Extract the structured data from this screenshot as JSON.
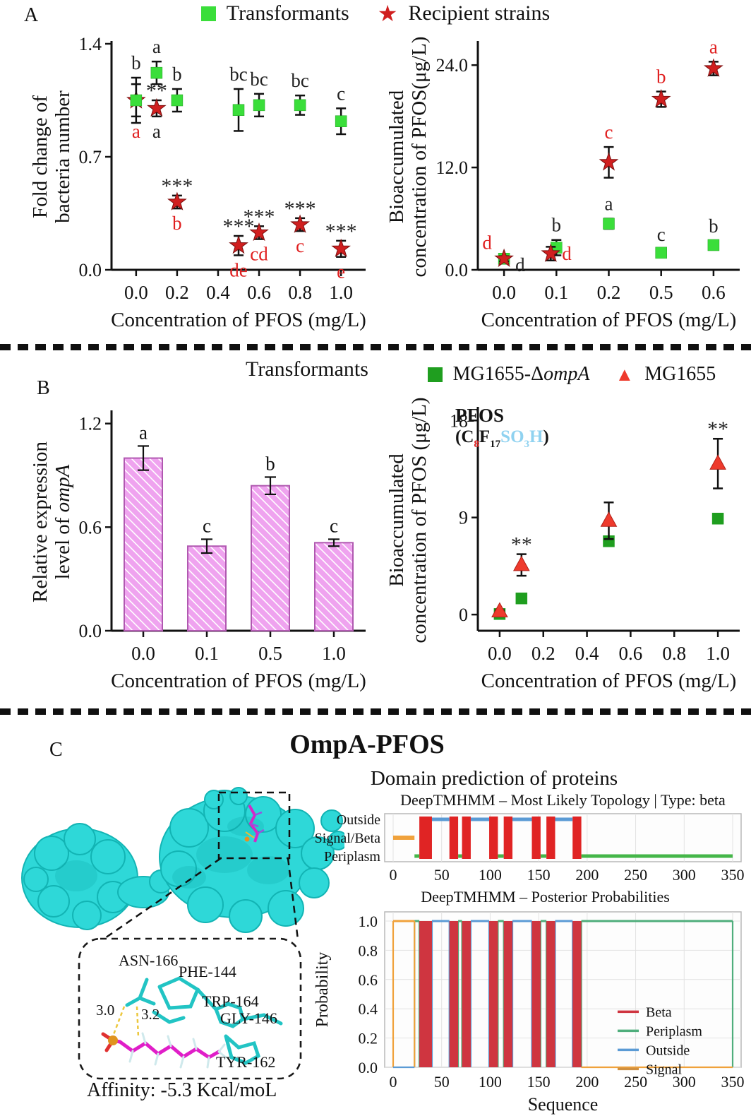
{
  "panels": {
    "a": {
      "label": "A",
      "legend": [
        {
          "label": "Transformants",
          "marker": "square",
          "color": "#3ade3a"
        },
        {
          "label": "Recipient strains",
          "marker": "star",
          "color": "#d01f1f"
        }
      ]
    },
    "b": {
      "label": "B",
      "title": "Transformants",
      "legend": [
        {
          "label_prefix": "MG1655-Δ",
          "label_italic": "ompA",
          "marker": "square",
          "color": "#1f9e1f"
        },
        {
          "label": "MG1655",
          "marker": "triangle",
          "color": "#ee3a2c"
        }
      ],
      "formula": {
        "title": "PFOS",
        "segments": [
          {
            "t": "(C",
            "c": "#141414"
          },
          {
            "t": "8",
            "c": "#e02020",
            "sub": true
          },
          {
            "t": "F",
            "c": "#141414"
          },
          {
            "t": "17",
            "c": "#141414",
            "sub": true
          },
          {
            "t": "SO",
            "c": "#8fd2f0"
          },
          {
            "t": "3",
            "c": "#8fd2f0",
            "sub": true
          },
          {
            "t": "H",
            "c": "#8fd2f0"
          },
          {
            "t": ")",
            "c": "#141414"
          }
        ]
      }
    },
    "c": {
      "label": "C",
      "title": "OmpA-PFOS",
      "domain_heading": "Domain prediction of proteins",
      "affinity": "Affinity: -5.3 Kcal/moL",
      "inset": {
        "residues": [
          "ASN-166",
          "PHE-144",
          "TRP-164",
          "GLY-146",
          "TYR-162"
        ],
        "distances": [
          "3.0",
          "3.2"
        ]
      }
    }
  },
  "chart_data": [
    {
      "id": "a_left",
      "type": "scatter",
      "xlabel": "Concentration of PFOS (mg/L)",
      "ylabel_lines": [
        [
          {
            "t": "Fold change of"
          }
        ],
        [
          {
            "t": "bacteria number"
          }
        ]
      ],
      "xlim": [
        -0.12,
        1.12
      ],
      "ylim": [
        0,
        1.4
      ],
      "xticks": [
        [
          0.0,
          "0.0"
        ],
        [
          0.2,
          "0.2"
        ],
        [
          0.4,
          "0.4"
        ],
        [
          0.6,
          "0.6"
        ],
        [
          0.8,
          "0.8"
        ],
        [
          1.0,
          "1.0"
        ]
      ],
      "yticks": [
        [
          0.0,
          "0.0"
        ],
        [
          0.7,
          "0.7"
        ],
        [
          1.4,
          "1.4"
        ]
      ],
      "series": [
        {
          "name": "Recipient strains",
          "marker": "star",
          "color": "#d01f1f",
          "points": [
            {
              "x": 0.0,
              "y": 1.05,
              "e": 0.1,
              "ann": [
                {
                  "t": "a",
                  "c": "#e02020",
                  "pos": "below"
                }
              ]
            },
            {
              "x": 0.1,
              "y": 1.0,
              "e": 0.05,
              "ann": [
                {
                  "t": "**",
                  "c": "#222",
                  "pos": "above"
                },
                {
                  "t": "a",
                  "c": "#222",
                  "pos": "below"
                }
              ]
            },
            {
              "x": 0.2,
              "y": 0.42,
              "e": 0.04,
              "ann": [
                {
                  "t": "***",
                  "c": "#222",
                  "pos": "above"
                },
                {
                  "t": "b",
                  "c": "#e02020",
                  "pos": "below"
                }
              ]
            },
            {
              "x": 0.5,
              "y": 0.15,
              "e": 0.06,
              "ann": [
                {
                  "t": "***",
                  "c": "#222",
                  "pos": "above"
                },
                {
                  "t": "de",
                  "c": "#e02020",
                  "pos": "below"
                }
              ]
            },
            {
              "x": 0.6,
              "y": 0.23,
              "e": 0.04,
              "ann": [
                {
                  "t": "***",
                  "c": "#222",
                  "pos": "above"
                },
                {
                  "t": "cd",
                  "c": "#e02020",
                  "pos": "below"
                }
              ]
            },
            {
              "x": 0.8,
              "y": 0.28,
              "e": 0.04,
              "ann": [
                {
                  "t": "***",
                  "c": "#222",
                  "pos": "above"
                },
                {
                  "t": "c",
                  "c": "#e02020",
                  "pos": "below"
                }
              ]
            },
            {
              "x": 1.0,
              "y": 0.13,
              "e": 0.05,
              "ann": [
                {
                  "t": "***",
                  "c": "#222",
                  "pos": "above"
                },
                {
                  "t": "e",
                  "c": "#e02020",
                  "pos": "below"
                }
              ]
            }
          ]
        },
        {
          "name": "Transformants",
          "marker": "square",
          "color": "#3ade3a",
          "points": [
            {
              "x": 0.0,
              "y": 1.05,
              "e": 0.14,
              "ann": [
                {
                  "t": "b",
                  "c": "#222",
                  "pos": "above"
                }
              ]
            },
            {
              "x": 0.1,
              "y": 1.22,
              "e": 0.07,
              "ann": [
                {
                  "t": "a",
                  "c": "#222",
                  "pos": "above"
                }
              ]
            },
            {
              "x": 0.2,
              "y": 1.05,
              "e": 0.07,
              "ann": [
                {
                  "t": "b",
                  "c": "#222",
                  "pos": "above"
                }
              ]
            },
            {
              "x": 0.5,
              "y": 0.99,
              "e": 0.13,
              "ann": [
                {
                  "t": "bc",
                  "c": "#222",
                  "pos": "above"
                }
              ]
            },
            {
              "x": 0.6,
              "y": 1.02,
              "e": 0.07,
              "ann": [
                {
                  "t": "bc",
                  "c": "#222",
                  "pos": "above"
                }
              ]
            },
            {
              "x": 0.8,
              "y": 1.02,
              "e": 0.06,
              "ann": [
                {
                  "t": "bc",
                  "c": "#222",
                  "pos": "above"
                }
              ]
            },
            {
              "x": 1.0,
              "y": 0.92,
              "e": 0.08,
              "ann": [
                {
                  "t": "c",
                  "c": "#222",
                  "pos": "above"
                }
              ]
            }
          ]
        }
      ]
    },
    {
      "id": "a_right",
      "type": "scatter",
      "xlabel": "Concentration of PFOS (mg/L)",
      "ylabel_lines": [
        [
          {
            "t": "Bioaccumulated"
          }
        ],
        [
          {
            "t": "concentration of PFOS(μg/L)"
          }
        ]
      ],
      "categories": [
        "0.0",
        "0.1",
        "0.2",
        "0.5",
        "0.6"
      ],
      "ylim": [
        0,
        26.5
      ],
      "yticks": [
        [
          0.0,
          "0.0"
        ],
        [
          12.0,
          "12.0"
        ],
        [
          24.0,
          "24.0"
        ]
      ],
      "series": [
        {
          "name": "Transformants",
          "marker": "square",
          "color": "#3ade3a",
          "points": [
            {
              "x": 0,
              "y": 1.3,
              "e": 0.3,
              "ann": [
                {
                  "t": "d",
                  "c": "#222",
                  "pos": "right-below"
                }
              ]
            },
            {
              "x": 1,
              "y": 2.6,
              "e": 0.9,
              "ann": [
                {
                  "t": "b",
                  "c": "#222",
                  "pos": "above"
                }
              ]
            },
            {
              "x": 2,
              "y": 5.4,
              "e": 0.6,
              "ann": [
                {
                  "t": "a",
                  "c": "#222",
                  "pos": "above"
                }
              ]
            },
            {
              "x": 3,
              "y": 2.0,
              "e": 0.4,
              "ann": [
                {
                  "t": "c",
                  "c": "#222",
                  "pos": "above"
                }
              ]
            },
            {
              "x": 4,
              "y": 2.9,
              "e": 0.5,
              "ann": [
                {
                  "t": "b",
                  "c": "#222",
                  "pos": "above"
                }
              ]
            }
          ]
        },
        {
          "name": "Recipient strains",
          "marker": "star",
          "color": "#d01f1f",
          "points": [
            {
              "x": 0,
              "y": 1.3,
              "e": 0.3,
              "ann": [
                {
                  "t": "d",
                  "c": "#e02020",
                  "pos": "above-left"
                }
              ]
            },
            {
              "x": 1,
              "y": 1.9,
              "e": 0.8,
              "dx": -8,
              "ann": [
                {
                  "t": "d",
                  "c": "#e02020",
                  "pos": "right"
                }
              ]
            },
            {
              "x": 2,
              "y": 12.6,
              "e": 1.8,
              "ann": [
                {
                  "t": "c",
                  "c": "#e02020",
                  "pos": "above"
                }
              ]
            },
            {
              "x": 3,
              "y": 20.0,
              "e": 0.9,
              "ann": [
                {
                  "t": "b",
                  "c": "#e02020",
                  "pos": "above"
                }
              ]
            },
            {
              "x": 4,
              "y": 23.6,
              "e": 0.8,
              "ann": [
                {
                  "t": "a",
                  "c": "#e02020",
                  "pos": "above"
                }
              ]
            }
          ]
        }
      ]
    },
    {
      "id": "b_left",
      "type": "bar",
      "xlabel": "Concentration of PFOS (mg/L)",
      "ylabel_lines": [
        [
          {
            "t": "Relative expression"
          }
        ],
        [
          {
            "t": "level of "
          },
          {
            "t": "ompA",
            "i": true
          }
        ]
      ],
      "categories": [
        "0.0",
        "0.1",
        "0.5",
        "1.0"
      ],
      "ylim": [
        0,
        1.26
      ],
      "yticks": [
        [
          0.0,
          "0.0"
        ],
        [
          0.6,
          "0.6"
        ],
        [
          1.2,
          "1.2"
        ]
      ],
      "bar_color": "#efa3ef",
      "bar_edge": "#b059b0",
      "values": [
        1.0,
        0.49,
        0.84,
        0.51
      ],
      "errors": [
        0.07,
        0.04,
        0.05,
        0.02
      ],
      "letters": [
        "a",
        "c",
        "b",
        "c"
      ]
    },
    {
      "id": "b_right",
      "type": "scatter",
      "xlabel": "Concentration of PFOS (mg/L)",
      "ylabel_lines": [
        [
          {
            "t": "Bioaccumulated"
          }
        ],
        [
          {
            "t": "concentration of PFOS (μg/L)"
          }
        ]
      ],
      "xlim": [
        -0.1,
        1.1
      ],
      "ylim": [
        -1.5,
        19
      ],
      "xticks": [
        [
          0.0,
          "0.0"
        ],
        [
          0.2,
          "0.2"
        ],
        [
          0.4,
          "0.4"
        ],
        [
          0.6,
          "0.6"
        ],
        [
          0.8,
          "0.8"
        ],
        [
          1.0,
          "1.0"
        ]
      ],
      "yticks": [
        [
          0,
          "0"
        ],
        [
          9,
          "9"
        ],
        [
          18,
          "18"
        ]
      ],
      "series": [
        {
          "name": "MG1655-ΔompA",
          "marker": "square",
          "color": "#1f9e1f",
          "points": [
            {
              "x": 0.0,
              "y": 0.05,
              "e": 0.15
            },
            {
              "x": 0.1,
              "y": 1.5,
              "e": 0.3
            },
            {
              "x": 0.5,
              "y": 6.8,
              "e": 0.35
            },
            {
              "x": 1.0,
              "y": 8.9,
              "e": 0.45
            }
          ]
        },
        {
          "name": "MG1655",
          "marker": "triangle",
          "color": "#ee3a2c",
          "points": [
            {
              "x": 0.0,
              "y": 0.3,
              "e": 0.1
            },
            {
              "x": 0.1,
              "y": 4.6,
              "e": 1.0,
              "ann": [
                {
                  "t": "**",
                  "c": "#222",
                  "pos": "above"
                }
              ]
            },
            {
              "x": 0.5,
              "y": 8.7,
              "e": 1.7
            },
            {
              "x": 1.0,
              "y": 14.0,
              "e": 2.3,
              "ann": [
                {
                  "t": "**",
                  "c": "#222",
                  "pos": "above"
                }
              ]
            }
          ]
        }
      ]
    },
    {
      "id": "c_top",
      "type": "topology",
      "title": "DeepTMHMM  – Most Likely Topology | Type: beta",
      "ylabels": [
        "Outside",
        "Signal/Beta",
        "Periplasm"
      ],
      "xticks": [
        [
          0,
          "0"
        ],
        [
          50,
          "50"
        ],
        [
          100,
          "100"
        ],
        [
          150,
          "150"
        ],
        [
          200,
          "200"
        ],
        [
          250,
          "250"
        ],
        [
          300,
          "300"
        ],
        [
          350,
          "350"
        ]
      ],
      "xmax": 350,
      "segments": {
        "signal": [
          [
            0,
            22
          ]
        ],
        "beta": [
          [
            27,
            40
          ],
          [
            58,
            67
          ],
          [
            71,
            80
          ],
          [
            99,
            108
          ],
          [
            114,
            123
          ],
          [
            143,
            152
          ],
          [
            158,
            167
          ],
          [
            185,
            194
          ]
        ],
        "outside": [
          [
            40,
            58
          ],
          [
            80,
            99
          ],
          [
            123,
            143
          ],
          [
            167,
            185
          ]
        ],
        "periplasm": [
          [
            22,
            27
          ],
          [
            67,
            71
          ],
          [
            108,
            114
          ],
          [
            152,
            158
          ],
          [
            194,
            350
          ]
        ]
      },
      "colors": {
        "signal": "#f0a23c",
        "beta": "#e02424",
        "outside": "#5b9bd5",
        "periplasm": "#45b649"
      }
    },
    {
      "id": "c_bottom",
      "type": "posterior",
      "title": "DeepTMHMM  – Posterior Probabilities",
      "xlabel": "Sequence",
      "ylabel": "Probability",
      "xticks": [
        [
          0,
          "0"
        ],
        [
          50,
          "50"
        ],
        [
          100,
          "100"
        ],
        [
          150,
          "150"
        ],
        [
          200,
          "200"
        ],
        [
          250,
          "250"
        ],
        [
          300,
          "300"
        ],
        [
          350,
          "350"
        ]
      ],
      "yticks": [
        [
          0.0,
          "0.0"
        ],
        [
          0.2,
          "0.2"
        ],
        [
          0.4,
          "0.4"
        ],
        [
          0.6,
          "0.6"
        ],
        [
          0.8,
          "0.8"
        ],
        [
          1.0,
          "1.0"
        ]
      ],
      "xmax": 350,
      "segments": {
        "signal": [
          [
            0,
            22
          ]
        ],
        "beta": [
          [
            27,
            40
          ],
          [
            58,
            67
          ],
          [
            71,
            80
          ],
          [
            99,
            108
          ],
          [
            114,
            123
          ],
          [
            143,
            152
          ],
          [
            158,
            167
          ],
          [
            185,
            194
          ]
        ],
        "outside": [
          [
            40,
            58
          ],
          [
            80,
            99
          ],
          [
            123,
            143
          ],
          [
            167,
            185
          ]
        ],
        "periplasm": [
          [
            22,
            27
          ],
          [
            67,
            71
          ],
          [
            108,
            114
          ],
          [
            152,
            158
          ],
          [
            194,
            350
          ]
        ]
      },
      "colors": {
        "signal": "#f0a23c",
        "beta": "#cf3540",
        "outside": "#5b9bd5",
        "periplasm": "#4fae7c"
      },
      "legend": [
        {
          "label": "Beta",
          "color": "#cf3540"
        },
        {
          "label": "Periplasm",
          "color": "#4fae7c"
        },
        {
          "label": "Outside",
          "color": "#5b9bd5"
        },
        {
          "label": "Signal",
          "color": "#d09040"
        }
      ]
    }
  ]
}
